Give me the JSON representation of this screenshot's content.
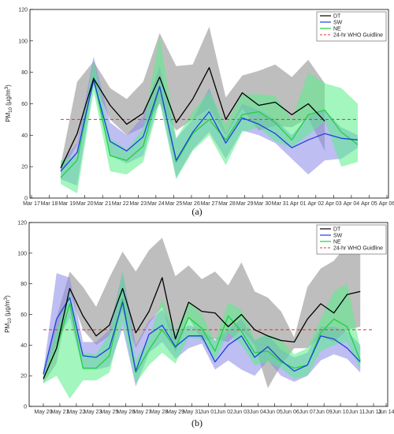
{
  "chart_data": [
    {
      "type": "line",
      "panel_label": "(a)",
      "ylabel": "PM10 (µg/m3)",
      "ylabel_main": "PM",
      "ylabel_sub": "10",
      "ylabel_unit": " (µg/m",
      "ylabel_sup": "3",
      "ylabel_close": ")",
      "ylim": [
        0,
        120
      ],
      "yticks": [
        0,
        20,
        40,
        60,
        80,
        100,
        120
      ],
      "xlim": [
        0,
        20
      ],
      "xticks": [
        "Mar 17",
        "Mar 18",
        "Mar 19",
        "Mar 20",
        "Mar 21",
        "Mar 22",
        "Mar 23",
        "Mar 24",
        "Mar 25",
        "Mar 26",
        "Mar 27",
        "Mar 28",
        "Mar 29",
        "Mar 30",
        "Mar 31",
        "Apr 01",
        "Apr 02",
        "Apr 03",
        "Apr 04",
        "Apr 05",
        "Apr 06"
      ],
      "reference_line": {
        "name": "24-hr WHO Guidline",
        "value": 50,
        "x_range": [
          1,
          19
        ],
        "color": "#e8302a"
      },
      "legend_position": "top-right",
      "series": [
        {
          "name": "DT",
          "color": "#000000",
          "band_color": "#a8a8a8",
          "x": [
            1,
            2,
            3,
            4,
            5,
            6,
            7,
            8,
            9,
            10,
            11,
            12,
            13,
            14,
            15,
            16,
            17,
            18,
            19
          ],
          "values": [
            19,
            41,
            76,
            59,
            47,
            54,
            77,
            48,
            63,
            83,
            50,
            67,
            59,
            61,
            53,
            60,
            49,
            null,
            null
          ],
          "upper": [
            21,
            74,
            87,
            70,
            63,
            74,
            105,
            84,
            85,
            109,
            64,
            78,
            81,
            85,
            77,
            88,
            73,
            null,
            null
          ],
          "lower": [
            16,
            34,
            73,
            50,
            40,
            45,
            60,
            43,
            50,
            57,
            40,
            57,
            43,
            46,
            45,
            51,
            30,
            null,
            null
          ]
        },
        {
          "name": "SW",
          "color": "#1f3fe0",
          "band_color": "#8888e8",
          "x": [
            1,
            2,
            3,
            4,
            5,
            6,
            7,
            8,
            9,
            10,
            11,
            12,
            13,
            14,
            15,
            16,
            17,
            18,
            19
          ],
          "values": [
            17,
            29,
            75,
            36,
            30,
            39,
            71,
            24,
            42,
            55,
            35,
            51,
            47,
            41,
            32,
            37,
            41,
            38,
            37
          ],
          "upper": [
            22,
            35,
            90,
            48,
            40,
            52,
            84,
            38,
            50,
            70,
            41,
            60,
            56,
            50,
            40,
            52,
            56,
            45,
            40
          ],
          "lower": [
            12,
            8,
            72,
            27,
            22,
            27,
            63,
            13,
            31,
            42,
            25,
            43,
            40,
            35,
            25,
            15,
            24,
            25,
            32
          ]
        },
        {
          "name": "NE",
          "color": "#22d040",
          "band_color": "#55ee88",
          "x": [
            1,
            2,
            3,
            4,
            5,
            6,
            7,
            8,
            9,
            10,
            11,
            12,
            13,
            14,
            15,
            16,
            17,
            18,
            19
          ],
          "values": [
            13,
            24,
            77,
            27,
            24,
            33,
            71,
            23,
            41,
            50,
            37,
            53,
            55,
            48,
            37,
            53,
            56,
            42,
            34
          ],
          "upper": [
            24,
            27,
            88,
            38,
            31,
            44,
            103,
            38,
            55,
            68,
            47,
            66,
            66,
            65,
            50,
            80,
            73,
            70,
            60
          ],
          "lower": [
            9,
            3,
            68,
            17,
            15,
            23,
            61,
            12,
            30,
            40,
            21,
            42,
            45,
            36,
            32,
            40,
            49,
            20,
            23
          ]
        }
      ]
    },
    {
      "type": "line",
      "panel_label": "(b)",
      "ylabel": "PM10 (µg/m3)",
      "ylabel_main": "PM",
      "ylabel_sub": "10",
      "ylabel_unit": " (µg/m",
      "ylabel_sup": "3",
      "ylabel_close": ")",
      "ylim": [
        0,
        120
      ],
      "yticks": [
        0,
        20,
        40,
        60,
        80,
        100,
        120
      ],
      "xlim": [
        0,
        25
      ],
      "xticks": [
        "May 20",
        "May 21",
        "May 22",
        "May 23",
        "May 25",
        "May 26",
        "May 27",
        "May 28",
        "May 29",
        "May 31",
        "Jun 01",
        "Jun 02",
        "Jun 03",
        "Jun 04",
        "Jun 05",
        "Jun 06",
        "Jun 07",
        "Jun 09",
        "Jun 10",
        "Jun 11",
        "Jun 12",
        "Jun 14"
      ],
      "xtick_pos": [
        0,
        1.25,
        2.5,
        3.75,
        5,
        6.25,
        7.5,
        8.75,
        10,
        11.25,
        12.5,
        13.75,
        15,
        16.25,
        17.5,
        18.75,
        20,
        21.25,
        22.5,
        23.75,
        25,
        27.5
      ],
      "reference_line": {
        "name": "24-hr WHO Guidline",
        "value": 50,
        "x_range": [
          0,
          25
        ],
        "color": "#e8302a"
      },
      "legend_position": "top-right",
      "series": [
        {
          "name": "DT",
          "color": "#000000",
          "band_color": "#a8a8a8",
          "x": [
            0,
            1,
            2,
            3,
            4,
            5,
            6,
            7,
            8,
            9,
            10,
            11,
            12,
            13,
            14,
            15,
            16,
            17,
            18,
            19,
            20,
            21,
            22,
            23,
            24,
            25
          ],
          "values": [
            18,
            38,
            77,
            59,
            46,
            53,
            77,
            48,
            62,
            84,
            44,
            68,
            62,
            61,
            52,
            60,
            50,
            46,
            43,
            42,
            57,
            67,
            61,
            73,
            75,
            null
          ],
          "upper": [
            22,
            58,
            88,
            78,
            65,
            84,
            101,
            88,
            102,
            110,
            85,
            92,
            83,
            88,
            79,
            94,
            75,
            71,
            62,
            45,
            78,
            90,
            95,
            106,
            113,
            null
          ],
          "lower": [
            15,
            28,
            74,
            50,
            40,
            46,
            62,
            38,
            54,
            65,
            35,
            58,
            43,
            44,
            42,
            50,
            40,
            12,
            27,
            38,
            38,
            46,
            42,
            50,
            52,
            null
          ]
        },
        {
          "name": "SW",
          "color": "#1f3fe0",
          "band_color": "#8888e8",
          "x": [
            0,
            1,
            2,
            3,
            4,
            5,
            6,
            7,
            8,
            9,
            10,
            11,
            12,
            13,
            14,
            15,
            16,
            17,
            18,
            19,
            20,
            21,
            22,
            23,
            24
          ],
          "values": [
            21,
            57,
            71,
            33,
            32,
            38,
            68,
            23,
            47,
            53,
            39,
            46,
            46,
            29,
            40,
            46,
            32,
            39,
            30,
            23,
            27,
            46,
            44,
            38,
            29
          ],
          "upper": [
            23,
            87,
            84,
            42,
            42,
            50,
            88,
            40,
            56,
            63,
            48,
            53,
            50,
            43,
            50,
            57,
            43,
            47,
            37,
            32,
            35,
            52,
            52,
            49,
            40
          ],
          "lower": [
            19,
            41,
            58,
            24,
            24,
            26,
            51,
            13,
            35,
            42,
            31,
            38,
            41,
            24,
            30,
            24,
            20,
            30,
            20,
            16,
            20,
            30,
            34,
            31,
            22
          ]
        },
        {
          "name": "NE",
          "color": "#22d040",
          "band_color": "#55ee88",
          "x": [
            0,
            1,
            2,
            3,
            4,
            5,
            6,
            7,
            8,
            9,
            10,
            11,
            12,
            13,
            14,
            15,
            16,
            17,
            18,
            19,
            20,
            21,
            22,
            23,
            24
          ],
          "values": [
            18,
            38,
            67,
            25,
            25,
            33,
            70,
            22,
            37,
            50,
            38,
            58,
            51,
            36,
            59,
            49,
            35,
            36,
            29,
            25,
            27,
            48,
            57,
            52,
            30
          ],
          "upper": [
            20,
            50,
            75,
            35,
            34,
            47,
            88,
            30,
            45,
            70,
            48,
            68,
            60,
            42,
            68,
            63,
            44,
            47,
            43,
            34,
            38,
            57,
            75,
            80,
            38
          ],
          "lower": [
            15,
            20,
            5,
            17,
            17,
            22,
            55,
            15,
            27,
            35,
            28,
            45,
            44,
            30,
            48,
            40,
            27,
            29,
            25,
            18,
            20,
            36,
            40,
            42,
            24
          ]
        }
      ]
    }
  ]
}
